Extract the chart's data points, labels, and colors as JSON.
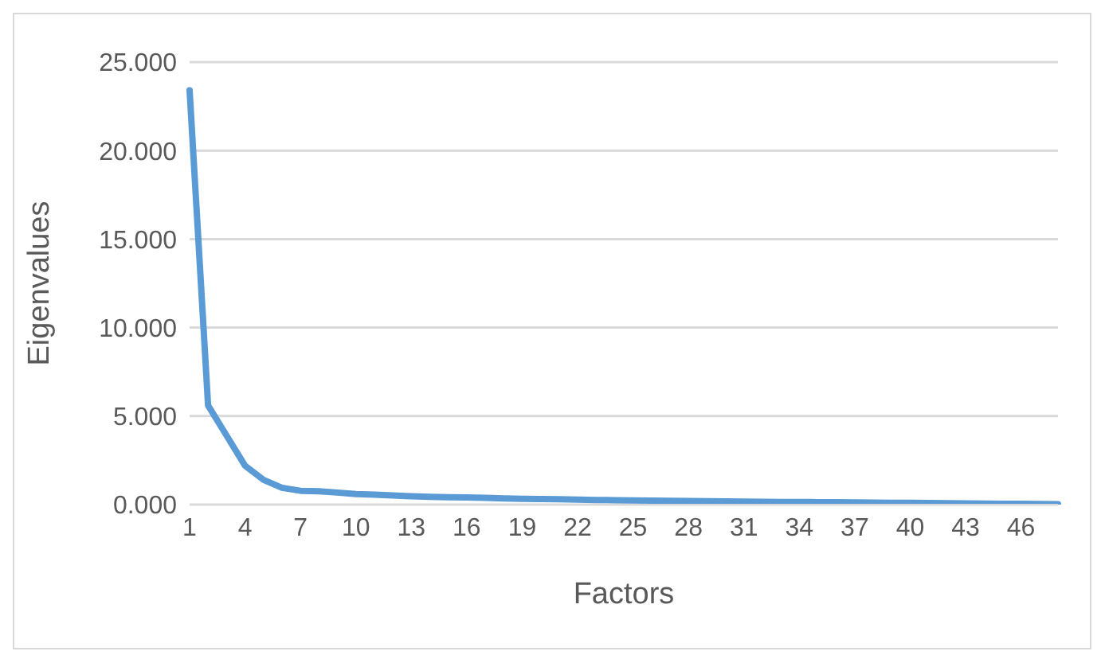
{
  "chart_data": {
    "type": "line",
    "xlabel": "Factors",
    "ylabel": "Eigenvalues",
    "categories": [
      "1",
      null,
      null,
      "4",
      null,
      null,
      "7",
      null,
      null,
      "10",
      null,
      null,
      "13",
      null,
      null,
      "16",
      null,
      null,
      "19",
      null,
      null,
      "22",
      null,
      null,
      "25",
      null,
      null,
      "28",
      null,
      null,
      "31",
      null,
      null,
      "34",
      null,
      null,
      "37",
      null,
      null,
      "40",
      null,
      null,
      "43",
      null,
      null,
      "46",
      null,
      null
    ],
    "series": [
      {
        "color": "#5b9bd5",
        "values": [
          23.4,
          5.6,
          3.9,
          2.2,
          1.4,
          0.95,
          0.78,
          0.75,
          0.68,
          0.6,
          0.56,
          0.52,
          0.47,
          0.44,
          0.42,
          0.4,
          0.38,
          0.35,
          0.33,
          0.31,
          0.3,
          0.28,
          0.26,
          0.25,
          0.24,
          0.22,
          0.21,
          0.2,
          0.19,
          0.18,
          0.17,
          0.16,
          0.15,
          0.15,
          0.14,
          0.13,
          0.12,
          0.11,
          0.1,
          0.1,
          0.09,
          0.08,
          0.07,
          0.06,
          0.05,
          0.04,
          0.03,
          0.02
        ]
      }
    ],
    "ylim": [
      0,
      25
    ],
    "yticks": [
      {
        "value": 0,
        "label": "0.000"
      },
      {
        "value": 5,
        "label": "5.000"
      },
      {
        "value": 10,
        "label": "10.000"
      },
      {
        "value": 15,
        "label": "15.000"
      },
      {
        "value": 20,
        "label": "20.000"
      },
      {
        "value": 25,
        "label": "25.000"
      }
    ],
    "grid": "y",
    "legend": false,
    "marker": "none",
    "line_style": "solid"
  }
}
